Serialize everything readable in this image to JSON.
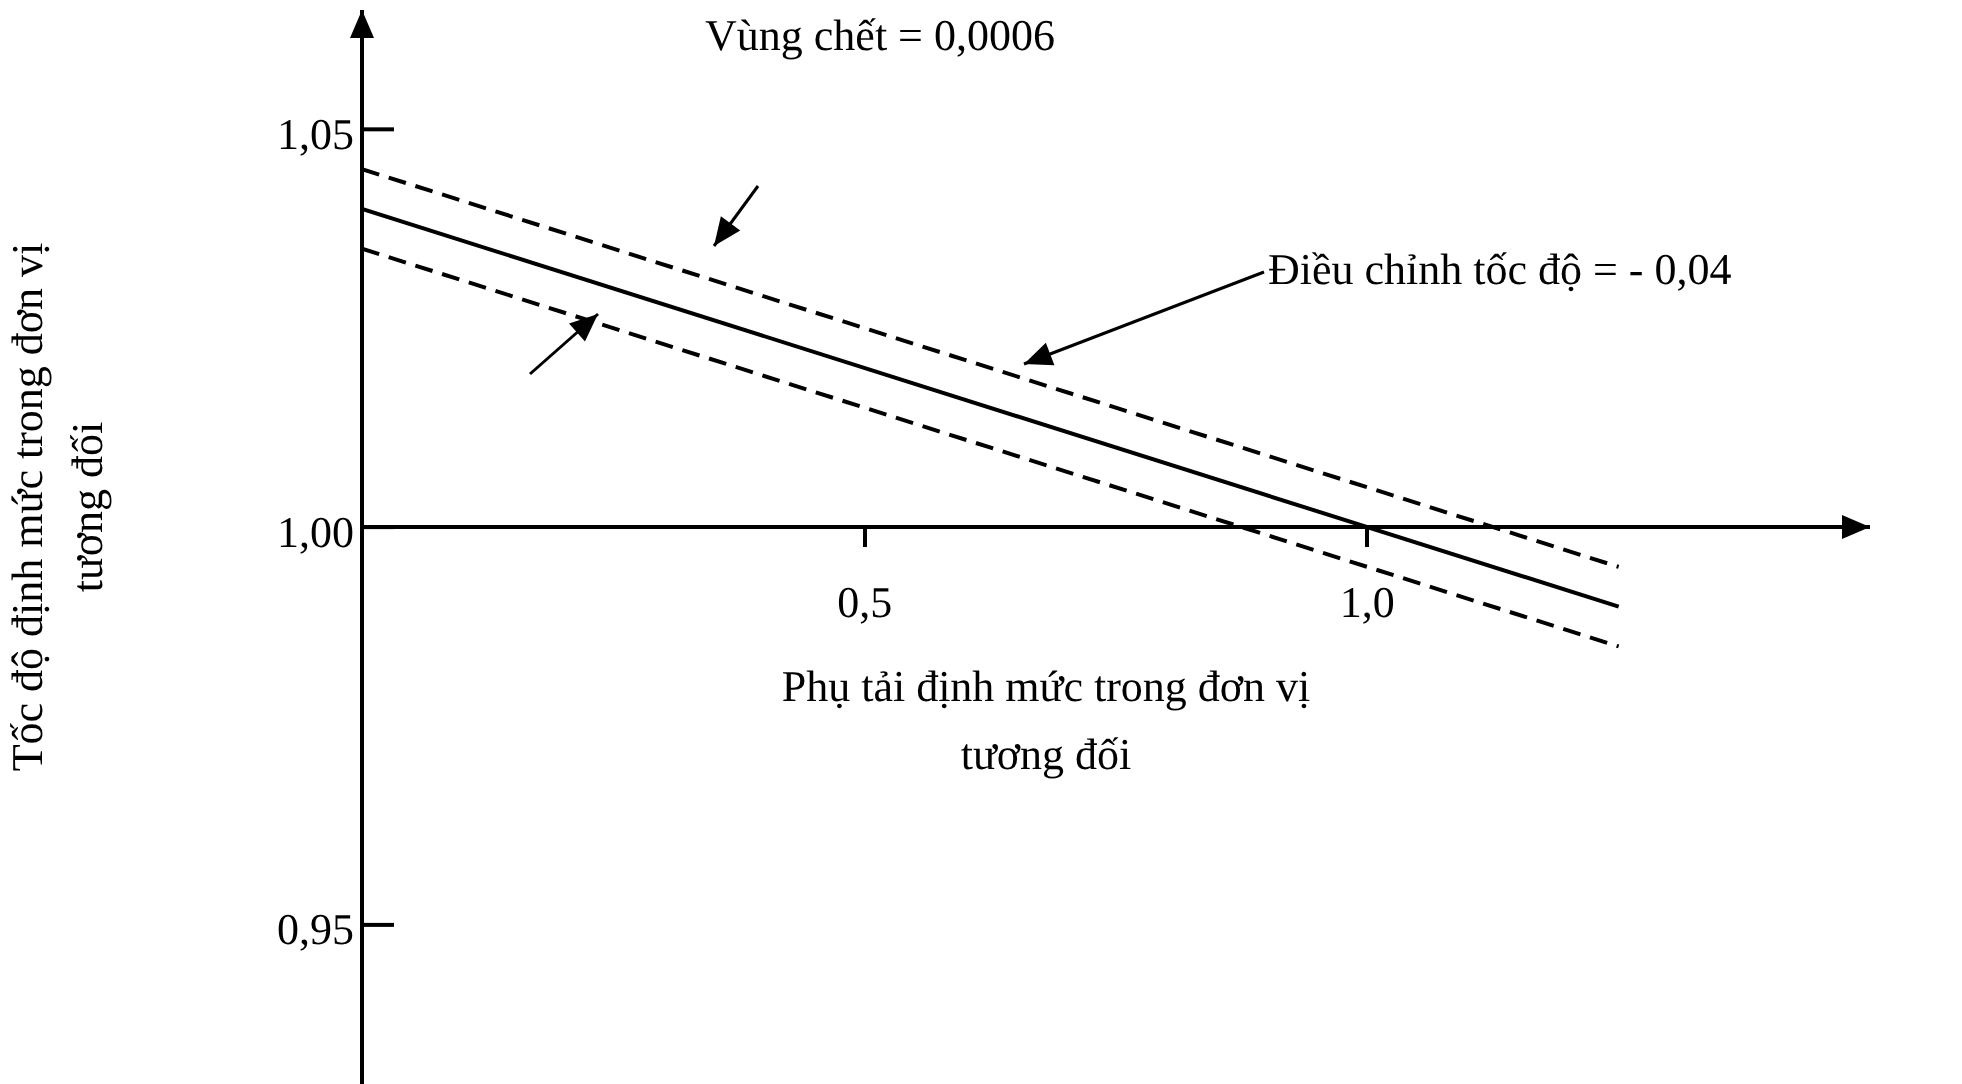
{
  "chart_data": {
    "type": "line",
    "xlabel": "Phụ tải định mức trong đơn vị tương đối",
    "ylabel": "Tốc độ định mức trong đơn vị tương đối",
    "x": [
      0,
      1.25
    ],
    "series": [
      {
        "color": "#000000",
        "values": [
          1.045,
          0.995
        ],
        "line_style": "dashed"
      },
      {
        "color": "#000000",
        "values": [
          1.04,
          0.99
        ],
        "line_style": "solid"
      },
      {
        "color": "#000000",
        "values": [
          1.035,
          0.985
        ],
        "line_style": "dashed"
      }
    ],
    "xlim": [
      0,
      1.5
    ],
    "ylim": [
      0.93,
      1.065
    ],
    "xticks": [
      {
        "value": 0.5,
        "label": "0,5"
      },
      {
        "value": 1.0,
        "label": "1,0"
      }
    ],
    "yticks": [
      {
        "value": 0.95,
        "label": "0,95"
      },
      {
        "value": 1.0,
        "label": "1,00"
      },
      {
        "value": 1.05,
        "label": "1,05"
      }
    ],
    "annotations": [
      "Vùng chết = 0,0006",
      "Điều chỉnh tốc độ = - 0,04"
    ],
    "legend": false,
    "marker": "none"
  }
}
